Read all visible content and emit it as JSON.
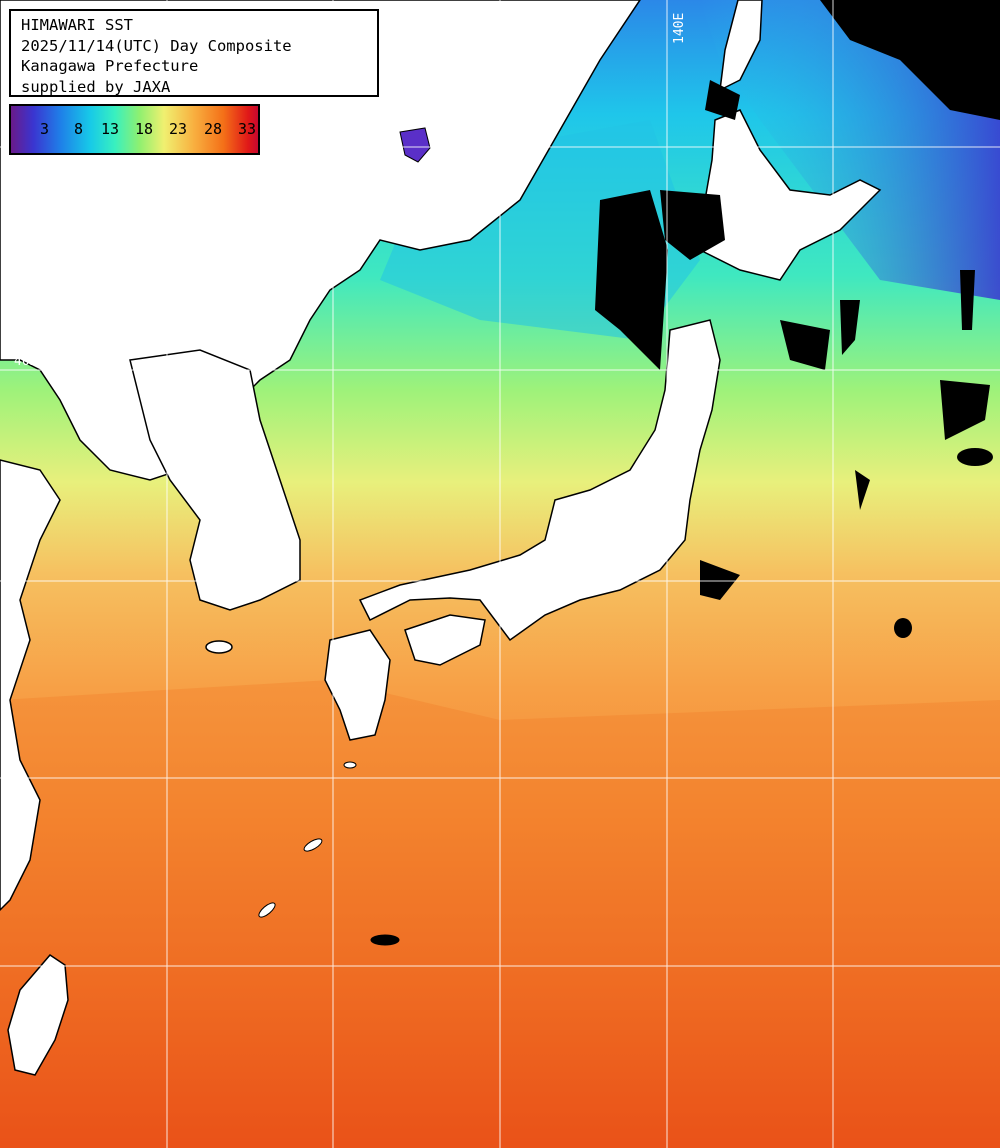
{
  "title": {
    "line1": "HIMAWARI SST",
    "line2": "2025/11/14(UTC) Day Composite",
    "line3": "Kanagawa Prefecture",
    "line4": "supplied by JAXA"
  },
  "legend": {
    "ticks": [
      "3",
      "8",
      "13",
      "18",
      "23",
      "28",
      "33"
    ]
  },
  "grid_labels": {
    "lon": "140E",
    "lat": "40N"
  },
  "colors": {
    "land": "#ffffff",
    "cloud": "#000000",
    "grid": "#ffffff",
    "cold": "#3a35d0",
    "cool": "#17c9e8",
    "mild": "#8ff070",
    "warm": "#f8b040",
    "hot": "#e84a14"
  }
}
